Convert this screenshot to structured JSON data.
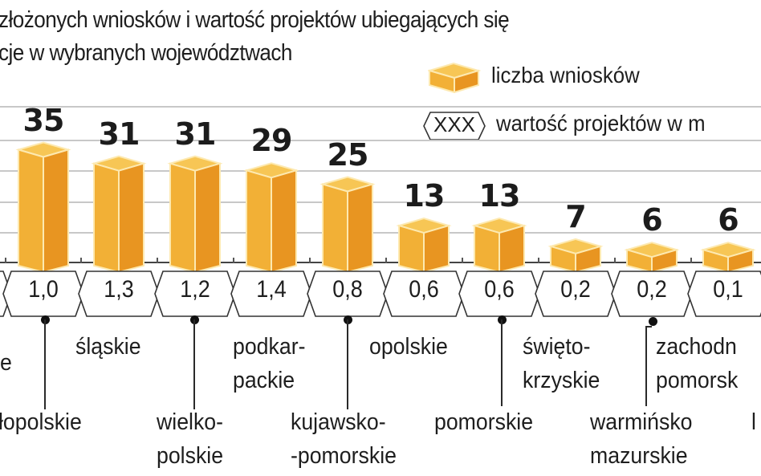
{
  "title": {
    "line1": "złożonych wniosków i wartość projektów ubiegających się",
    "line2": "cje w wybranych województwach"
  },
  "legend": {
    "bars_label": "liczba wniosków",
    "hex_sample": "XXX",
    "hex_label": "wartość projektów w m"
  },
  "colors": {
    "bar_front": "#F2B036",
    "bar_side": "#E89521",
    "bar_top": "#F7C655",
    "bar_edge": "#FDE9B0",
    "gridline": "#C8C8C8",
    "text": "#1E1E1E"
  },
  "chart_data": {
    "type": "bar",
    "title": "… złożonych wniosków i wartość projektów ubiegających się … cje w wybranych województwach",
    "categories": [
      "małopolskie",
      "śląskie",
      "wielkopolskie",
      "podkarpackie",
      "kujawsko-pomorskie",
      "opolskie",
      "pomorskie",
      "świętokrzyskie",
      "warmińsko-mazurskie",
      "zachodniopomorskie"
    ],
    "series": [
      {
        "name": "liczba wniosków",
        "values": [
          35,
          31,
          31,
          29,
          25,
          13,
          13,
          7,
          6,
          6
        ]
      },
      {
        "name": "wartość projektów w mln",
        "values": [
          1.0,
          1.3,
          1.2,
          1.4,
          0.8,
          0.6,
          0.6,
          0.2,
          0.2,
          0.1
        ]
      }
    ],
    "xlabel": "",
    "ylabel": "",
    "ylim": [
      0,
      40
    ],
    "grid": true,
    "legend_position": "top-right"
  },
  "bars": [
    {
      "value": "35",
      "money": "1,0"
    },
    {
      "value": "31",
      "money": "1,3"
    },
    {
      "value": "31",
      "money": "1,2"
    },
    {
      "value": "29",
      "money": "1,4"
    },
    {
      "value": "25",
      "money": "0,8"
    },
    {
      "value": "13",
      "money": "0,6"
    },
    {
      "value": "13",
      "money": "0,6"
    },
    {
      "value": "7",
      "money": "0,2"
    },
    {
      "value": "6",
      "money": "0,2"
    },
    {
      "value": "6",
      "money": "0,1"
    }
  ],
  "regions": {
    "partial_left": "e",
    "malopolskie": "łopolskie",
    "slaskie": "śląskie",
    "wielkopolskie_1": "wielko-",
    "wielkopolskie_2": "polskie",
    "podkarpackie_1": "podkar-",
    "podkarpackie_2": "packie",
    "kujawsko_1": "kujawsko-",
    "kujawsko_2": "-pomorskie",
    "opolskie": "opolskie",
    "pomorskie": "pomorskie",
    "swietokrzyskie_1": "święto-",
    "swietokrzyskie_2": "krzyskie",
    "warminsko_1": "warmińsko",
    "warminsko_2": "mazurskie",
    "zachodnio_1": "zachodn",
    "zachodnio_2": "pomorsk",
    "partial_right": "l"
  }
}
